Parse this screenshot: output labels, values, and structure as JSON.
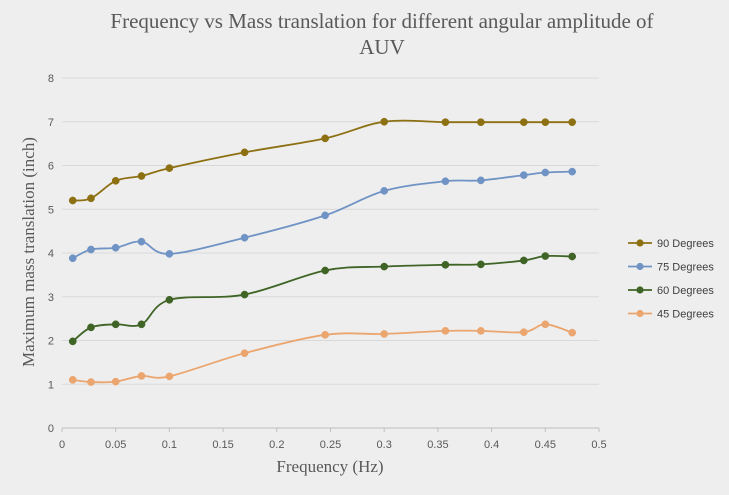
{
  "chart_data": {
    "type": "line",
    "title_lines": [
      "Frequency vs Mass translation for different angular amplitude of",
      "AUV"
    ],
    "xlabel": "Frequency  (Hz)",
    "ylabel": "Maximum mass translation  (inch)",
    "xlim": [
      0,
      0.5
    ],
    "ylim": [
      0,
      8
    ],
    "xticks": [
      "0",
      "0.05",
      "0.1",
      "0.15",
      "0.2",
      "0.25",
      "0.3",
      "0.35",
      "0.4",
      "0.45",
      "0.5"
    ],
    "yticks": [
      "0",
      "1",
      "2",
      "3",
      "4",
      "5",
      "6",
      "7",
      "8"
    ],
    "grid": "horizontal",
    "legend_position": "right",
    "x": [
      0.01,
      0.027,
      0.05,
      0.074,
      0.1,
      0.17,
      0.245,
      0.3,
      0.357,
      0.39,
      0.43,
      0.45,
      0.475
    ],
    "series": [
      {
        "name": "90 Degrees",
        "color": "#8d7012",
        "values": [
          5.2,
          5.25,
          5.65,
          5.76,
          5.94,
          6.3,
          6.62,
          7.0,
          6.99,
          6.99,
          6.99,
          6.99,
          6.99
        ]
      },
      {
        "name": "75 Degrees",
        "color": "#7093c5",
        "values": [
          3.88,
          4.08,
          4.12,
          4.26,
          3.98,
          4.35,
          4.86,
          5.42,
          5.64,
          5.66,
          5.78,
          5.84,
          5.86
        ]
      },
      {
        "name": "60 Degrees",
        "color": "#3f6426",
        "values": [
          1.98,
          2.3,
          2.37,
          2.37,
          2.93,
          3.05,
          3.6,
          3.69,
          3.73,
          3.74,
          3.83,
          3.93,
          3.92
        ]
      },
      {
        "name": "45 Degrees",
        "color": "#eba56e",
        "values": [
          1.1,
          1.05,
          1.06,
          1.19,
          1.18,
          1.71,
          2.13,
          2.15,
          2.22,
          2.22,
          2.19,
          2.37,
          2.18
        ]
      }
    ]
  }
}
